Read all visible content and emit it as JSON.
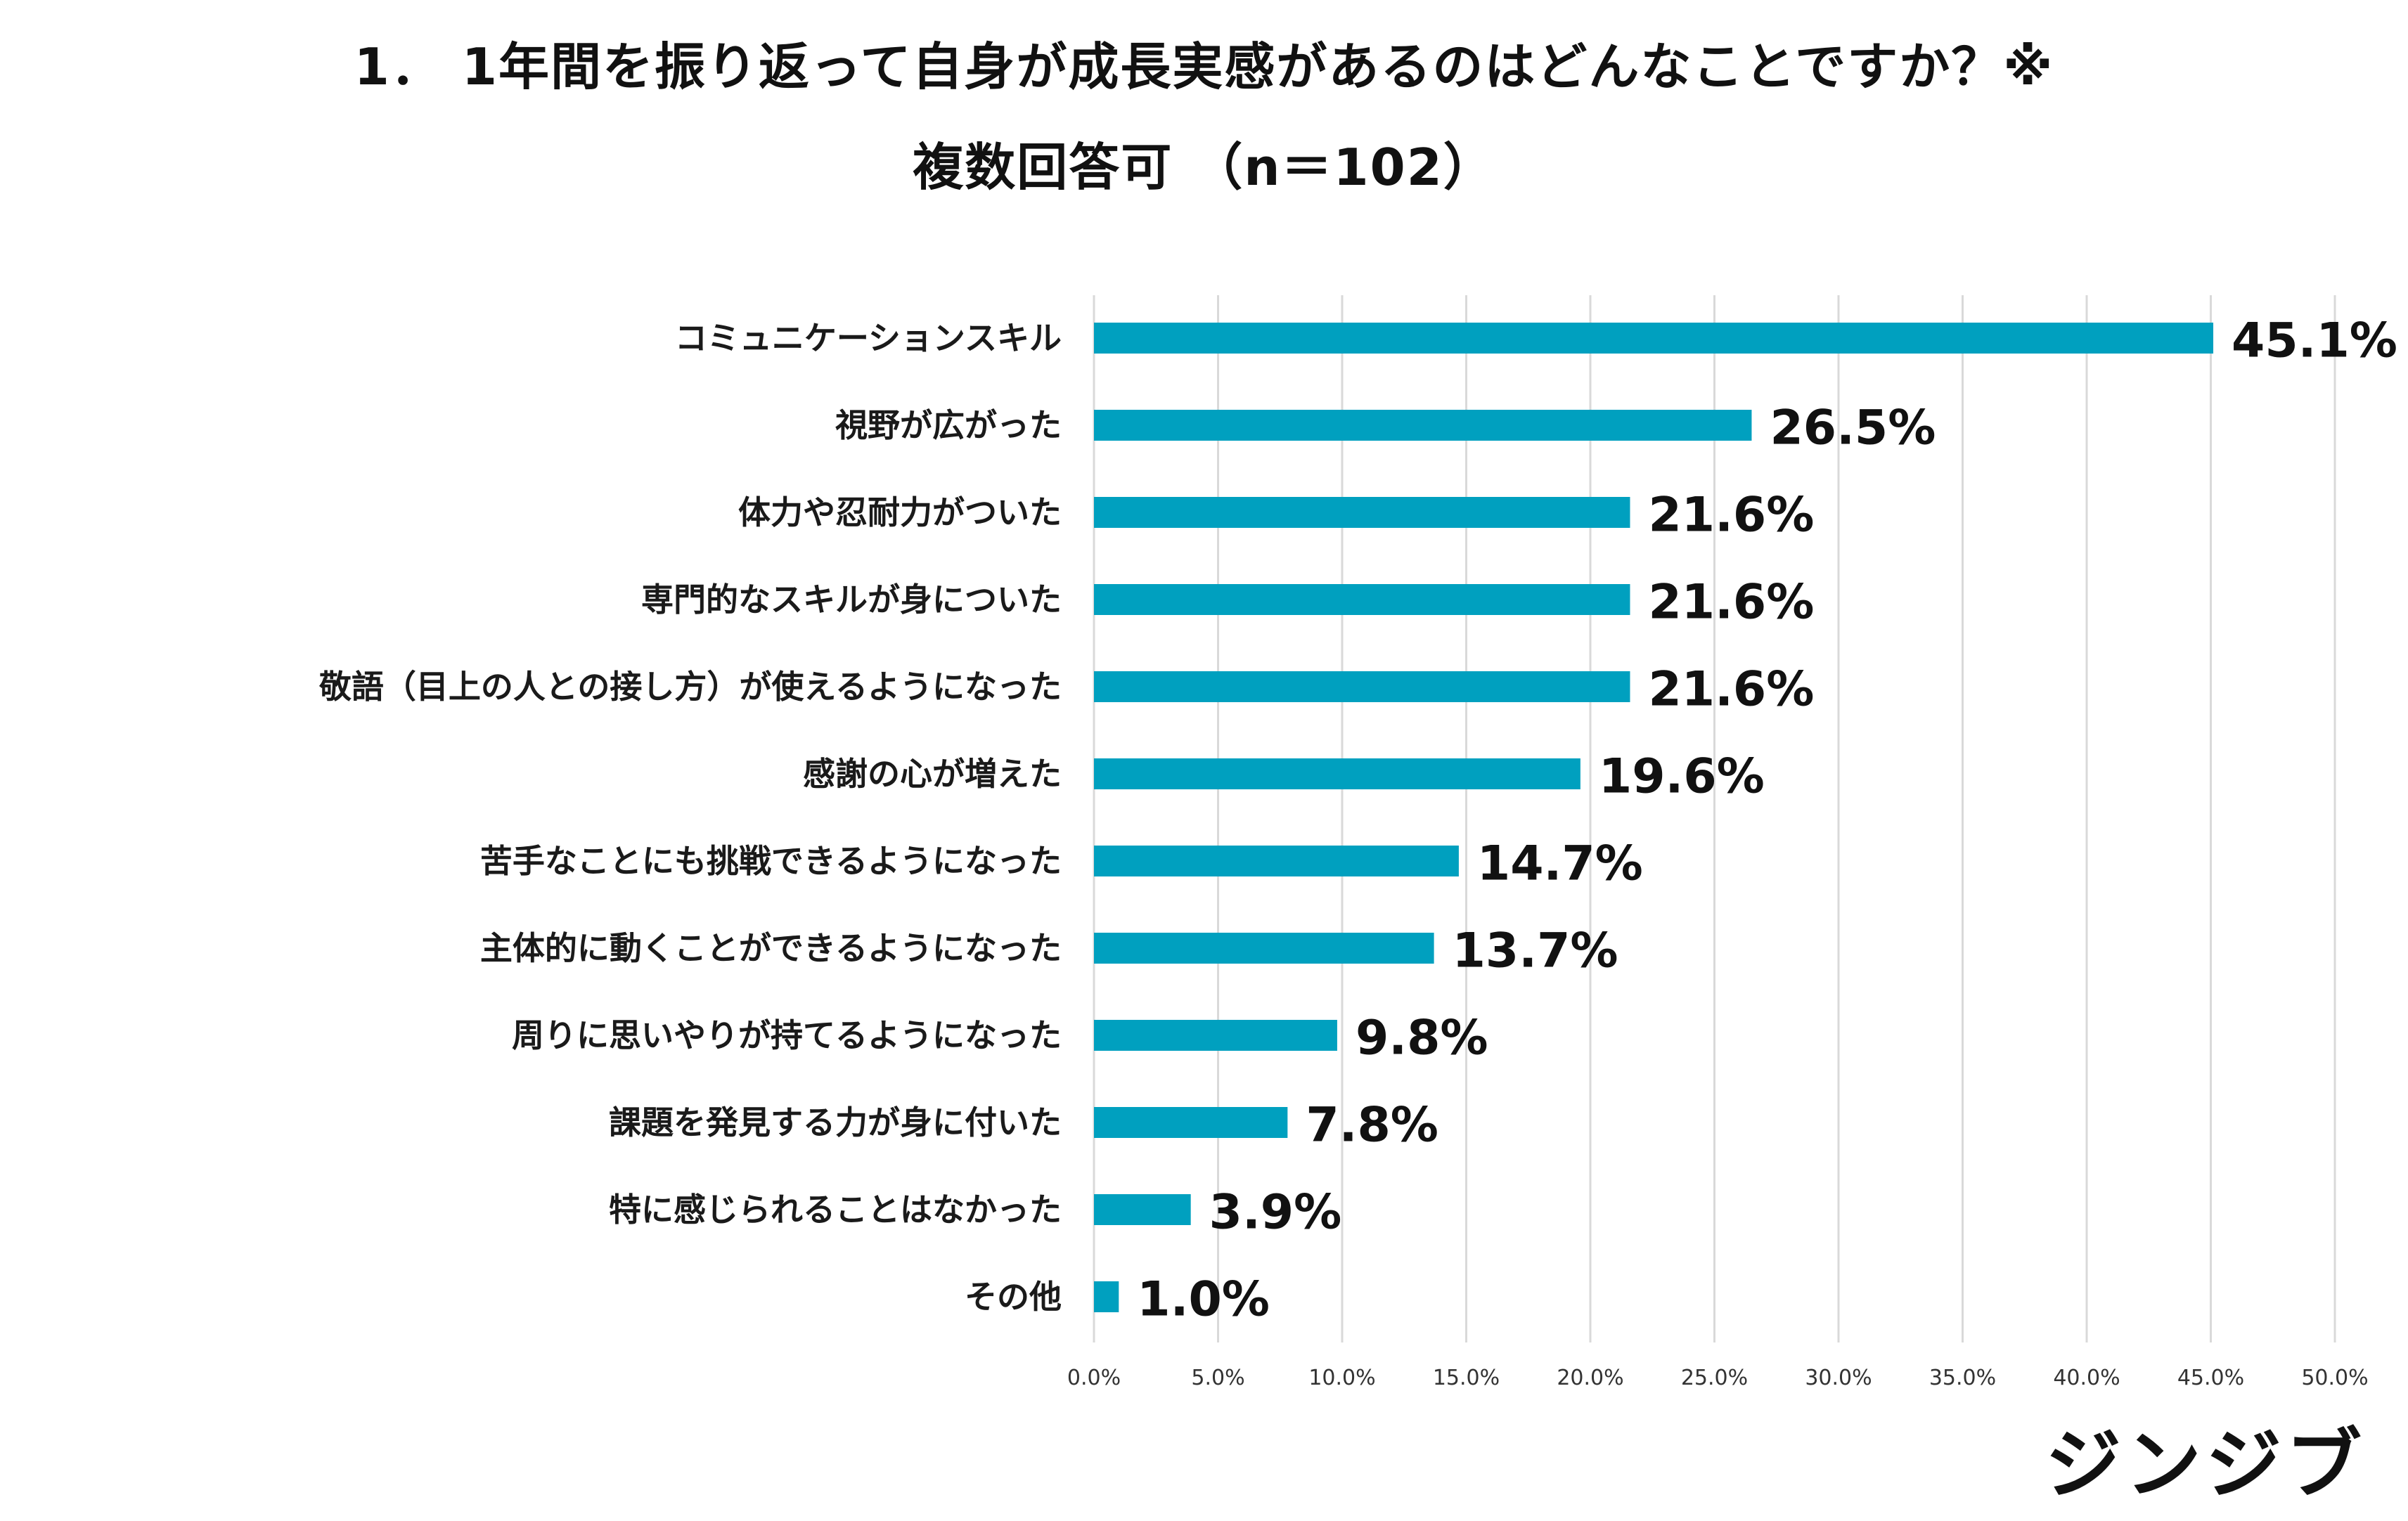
{
  "chart_data": {
    "type": "bar",
    "orientation": "horizontal",
    "title_line_1": "1． 1年間を振り返って自身が成長実感があるのはどんなことですか？※",
    "title_line_2": "複数回答可 （n＝102）",
    "categories": [
      "コミュニケーションスキル",
      "視野が広がった",
      "体力や忍耐力がついた",
      "専門的なスキルが身についた",
      "敬語（目上の人との接し方）が使えるようになった",
      "感謝の心が増えた",
      "苦手なことにも挑戦できるようになった",
      "主体的に動くことができるようになった",
      "周りに思いやりが持てるようになった",
      "課題を発見する力が身に付いた",
      "特に感じられることはなかった",
      "その他"
    ],
    "values": [
      45.1,
      26.5,
      21.6,
      21.6,
      21.6,
      19.6,
      14.7,
      13.7,
      9.8,
      7.8,
      3.9,
      1.0
    ],
    "value_labels": [
      "45.1%",
      "26.5%",
      "21.6%",
      "21.6%",
      "21.6%",
      "19.6%",
      "14.7%",
      "13.7%",
      "9.8%",
      "7.8%",
      "3.9%",
      "1.0%"
    ],
    "xlim": [
      0,
      50
    ],
    "x_ticks": [
      0,
      5,
      10,
      15,
      20,
      25,
      30,
      35,
      40,
      45,
      50
    ],
    "x_tick_labels": [
      "0.0%",
      "5.0%",
      "10.0%",
      "15.0%",
      "20.0%",
      "25.0%",
      "30.0%",
      "35.0%",
      "40.0%",
      "45.0%",
      "50.0%"
    ],
    "grid": "vertical",
    "legend": "none",
    "bar_color": "#00a0bf",
    "grid_color": "#d9d9d9"
  },
  "logo_text": "ジンジブ"
}
